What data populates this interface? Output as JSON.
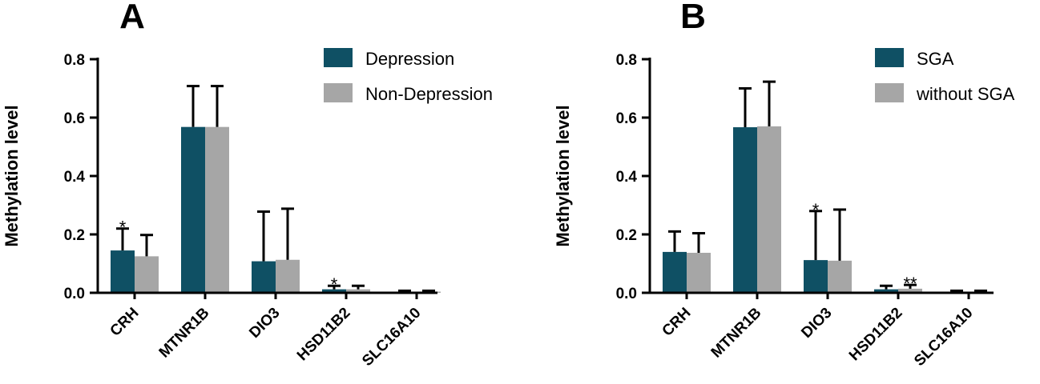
{
  "chart_data": [
    {
      "panel": "A",
      "type": "bar",
      "ylabel": "Methylation level",
      "ylim": [
        0,
        0.8
      ],
      "yticks": [
        "0.0",
        "0.2",
        "0.4",
        "0.6",
        "0.8"
      ],
      "categories": [
        "CRH",
        "MTNR1B",
        "DIO3",
        "HSD11B2",
        "SLC16A10"
      ],
      "legend_position": "top-right",
      "series": [
        {
          "name": "Depression",
          "color": "#0f5064",
          "values": [
            0.145,
            0.568,
            0.108,
            0.012,
            0.004
          ],
          "errors": [
            0.075,
            0.14,
            0.17,
            0.012,
            0.003
          ]
        },
        {
          "name": "Non-Depression",
          "color": "#a6a6a6",
          "values": [
            0.125,
            0.568,
            0.113,
            0.012,
            0.004
          ],
          "errors": [
            0.073,
            0.14,
            0.175,
            0.012,
            0.003
          ]
        }
      ],
      "annotations": [
        {
          "text": "*",
          "category": 0,
          "series": 0
        },
        {
          "text": "*",
          "category": 3,
          "series": 0
        }
      ]
    },
    {
      "panel": "B",
      "type": "bar",
      "ylabel": "Methylation level",
      "ylim": [
        0,
        0.8
      ],
      "yticks": [
        "0.0",
        "0.2",
        "0.4",
        "0.6",
        "0.8"
      ],
      "categories": [
        "CRH",
        "MTNR1B",
        "DIO3",
        "HSD11B2",
        "SLC16A10"
      ],
      "legend_position": "top-right",
      "series": [
        {
          "name": "SGA",
          "color": "#0f5064",
          "values": [
            0.14,
            0.567,
            0.112,
            0.012,
            0.004
          ],
          "errors": [
            0.07,
            0.133,
            0.168,
            0.012,
            0.003
          ]
        },
        {
          "name": "without SGA",
          "color": "#a6a6a6",
          "values": [
            0.137,
            0.57,
            0.11,
            0.014,
            0.004
          ],
          "errors": [
            0.067,
            0.153,
            0.175,
            0.013,
            0.003
          ]
        }
      ],
      "annotations": [
        {
          "text": "*",
          "category": 2,
          "series": 0
        },
        {
          "text": "**",
          "category": 3,
          "series": 1
        }
      ]
    }
  ]
}
